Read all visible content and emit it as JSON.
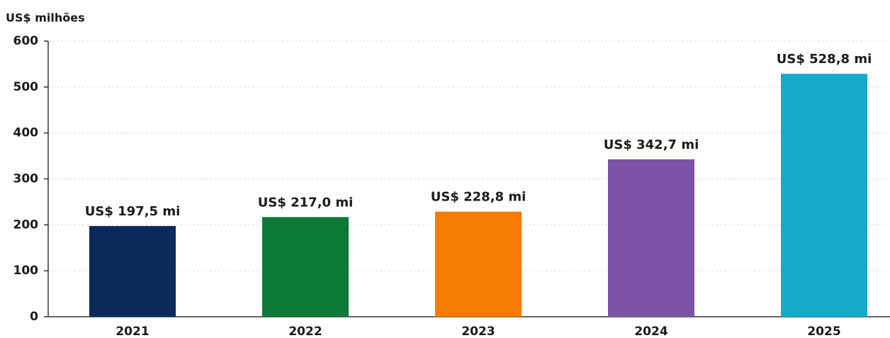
{
  "chart_data": {
    "type": "bar",
    "y_label": "US$ milhões",
    "categories": [
      "2021",
      "2022",
      "2023",
      "2024",
      "2025"
    ],
    "values": [
      197.5,
      217.0,
      228.8,
      342.7,
      528.8
    ],
    "value_labels": [
      "US$ 197,5 mi",
      "US$ 217,0 mi",
      "US$ 228,8 mi",
      "US$ 342,7 mi",
      "US$ 528,8 mi"
    ],
    "colors": [
      "#0b2a5c",
      "#0b7a36",
      "#f57c00",
      "#7b52a8",
      "#15abc9"
    ],
    "ylim": [
      0,
      600
    ],
    "yticks": [
      0,
      100,
      200,
      300,
      400,
      500,
      600
    ],
    "grid": true
  }
}
